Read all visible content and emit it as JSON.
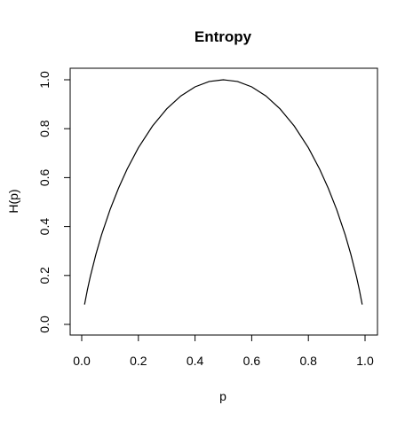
{
  "chart_data": {
    "type": "line",
    "title": "Entropy",
    "xlabel": "p",
    "ylabel": "H(p)",
    "xlim": [
      0,
      1
    ],
    "ylim": [
      0,
      1
    ],
    "x_ticks": [
      "0.0",
      "0.2",
      "0.4",
      "0.6",
      "0.8",
      "1.0"
    ],
    "y_ticks": [
      "0.0",
      "0.2",
      "0.4",
      "0.6",
      "0.8",
      "1.0"
    ],
    "grid": false,
    "legend": "none",
    "series": [
      {
        "color": "#000000",
        "x": [
          0.01,
          0.02,
          0.03,
          0.05,
          0.07,
          0.1,
          0.13,
          0.16,
          0.2,
          0.25,
          0.3,
          0.35,
          0.4,
          0.45,
          0.5,
          0.55,
          0.6,
          0.65,
          0.7,
          0.75,
          0.8,
          0.84,
          0.87,
          0.9,
          0.93,
          0.95,
          0.97,
          0.98,
          0.99
        ],
        "y": [
          0.081,
          0.141,
          0.194,
          0.286,
          0.366,
          0.469,
          0.557,
          0.634,
          0.722,
          0.811,
          0.881,
          0.934,
          0.971,
          0.993,
          1.0,
          0.993,
          0.971,
          0.934,
          0.881,
          0.811,
          0.722,
          0.634,
          0.557,
          0.469,
          0.366,
          0.286,
          0.194,
          0.141,
          0.081
        ]
      }
    ]
  }
}
